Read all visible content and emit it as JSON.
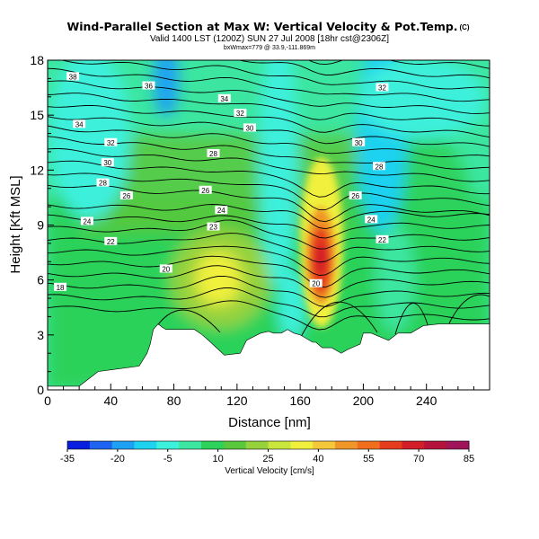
{
  "chart_data": {
    "type": "heatmap",
    "title": "Wind-Parallel Section at Max W: Vertical Velocity & Pot.Temp.",
    "title_tag": "(C)",
    "subtitle": "Valid 1400 LST (1200Z) SUN 27 Jul 2008 [18hr cst@2306Z]",
    "info_line": "bxWmax=779 @ 33.9,-111.869m",
    "xlabel": "Distance [nm]",
    "ylabel": "Height [Kft MSL]",
    "xlim": [
      0,
      280
    ],
    "ylim": [
      0,
      18
    ],
    "xticks": [
      "0",
      "40",
      "80",
      "120",
      "160",
      "200",
      "240"
    ],
    "yticks": [
      "0",
      "3",
      "6",
      "9",
      "12",
      "15",
      "18"
    ],
    "colorbar": {
      "label": "Vertical Velocity [cm/s]",
      "tick_labels": [
        "-35",
        "-20",
        "-5",
        "10",
        "25",
        "40",
        "55",
        "70",
        "85"
      ],
      "colors": [
        "#0a1ee0",
        "#1e64f0",
        "#1ea0f5",
        "#1ed2f0",
        "#3cf0dc",
        "#3ce6a0",
        "#2cd25a",
        "#5ac83c",
        "#96d23c",
        "#c8e63c",
        "#f0f03c",
        "#f5c83c",
        "#f09628",
        "#f06e1e",
        "#e63c1e",
        "#d21e28",
        "#b4143c",
        "#a0145a"
      ]
    },
    "contour_labels": [
      {
        "x": 16,
        "y": 17.1,
        "text": "38"
      },
      {
        "x": 64,
        "y": 16.6,
        "text": "36"
      },
      {
        "x": 112,
        "y": 15.9,
        "text": "34"
      },
      {
        "x": 122,
        "y": 15.1,
        "text": "32"
      },
      {
        "x": 128,
        "y": 14.3,
        "text": "30"
      },
      {
        "x": 20,
        "y": 14.5,
        "text": "34"
      },
      {
        "x": 40,
        "y": 13.5,
        "text": "32"
      },
      {
        "x": 38,
        "y": 12.4,
        "text": "30"
      },
      {
        "x": 35,
        "y": 11.3,
        "text": "28"
      },
      {
        "x": 50,
        "y": 10.6,
        "text": "26"
      },
      {
        "x": 25,
        "y": 9.2,
        "text": "24"
      },
      {
        "x": 40,
        "y": 8.1,
        "text": "22"
      },
      {
        "x": 105,
        "y": 12.9,
        "text": "28"
      },
      {
        "x": 100,
        "y": 10.9,
        "text": "26"
      },
      {
        "x": 110,
        "y": 9.8,
        "text": "24"
      },
      {
        "x": 105,
        "y": 8.9,
        "text": "23"
      },
      {
        "x": 75,
        "y": 6.6,
        "text": "20"
      },
      {
        "x": 8,
        "y": 5.6,
        "text": "18"
      },
      {
        "x": 170,
        "y": 5.8,
        "text": "20"
      },
      {
        "x": 212,
        "y": 16.5,
        "text": "32"
      },
      {
        "x": 197,
        "y": 13.5,
        "text": "30"
      },
      {
        "x": 210,
        "y": 12.2,
        "text": "28"
      },
      {
        "x": 195,
        "y": 10.6,
        "text": "26"
      },
      {
        "x": 205,
        "y": 9.3,
        "text": "24"
      },
      {
        "x": 212,
        "y": 8.2,
        "text": "22"
      }
    ],
    "terrain": {
      "x": [
        0,
        20,
        32,
        58,
        63,
        65,
        67,
        70,
        73,
        75,
        93,
        98,
        102,
        107,
        112,
        122,
        126,
        135,
        140,
        143,
        148,
        152,
        156,
        160,
        168,
        170,
        174,
        180,
        186,
        190,
        198,
        200,
        205,
        216,
        222,
        230,
        238,
        248,
        258,
        270,
        280
      ],
      "y": [
        0.2,
        0.2,
        1.0,
        1.3,
        2.0,
        2.5,
        3.3,
        3.6,
        3.4,
        3.3,
        3.3,
        3.0,
        2.7,
        2.3,
        1.9,
        2.0,
        2.7,
        3.1,
        3.2,
        3.1,
        3.1,
        3.3,
        3.1,
        3.0,
        2.6,
        2.6,
        2.3,
        2.3,
        2.0,
        2.2,
        2.5,
        3.1,
        3.1,
        2.7,
        3.1,
        3.1,
        3.5,
        3.6,
        3.6,
        3.6,
        3.6
      ]
    },
    "updraft_max": {
      "x": 174,
      "y": 7.0,
      "value": 72
    }
  }
}
